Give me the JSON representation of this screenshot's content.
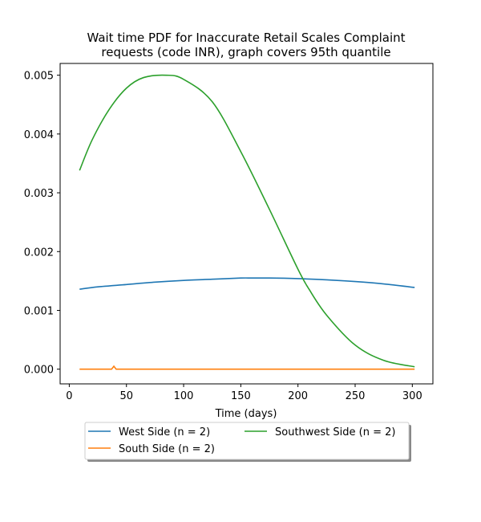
{
  "chart_data": {
    "type": "line",
    "title": "Wait time PDF for Inaccurate Retail Scales Complaint requests (code INR), graph covers 95th quantile",
    "title_lines": [
      "Wait time PDF for Inaccurate Retail Scales Complaint",
      "requests (code INR), graph covers 95th quantile"
    ],
    "xlabel": "Time (days)",
    "ylabel": "",
    "xlim": [
      -8,
      318
    ],
    "ylim": [
      -0.00025,
      0.0052
    ],
    "xticks": [
      0,
      50,
      100,
      150,
      200,
      250,
      300
    ],
    "yticks": [
      0.0,
      0.001,
      0.002,
      0.003,
      0.004,
      0.005
    ],
    "ytick_labels": [
      "0.000",
      "0.001",
      "0.002",
      "0.003",
      "0.004",
      "0.005"
    ],
    "grid": false,
    "legend_placement": "below-plot",
    "series": [
      {
        "name": "West Side (n = 2)",
        "color": "#1f77b4",
        "x": [
          9,
          25,
          50,
          75,
          100,
          125,
          150,
          160,
          175,
          200,
          225,
          250,
          275,
          302
        ],
        "y": [
          0.00136,
          0.0014,
          0.00144,
          0.00148,
          0.00151,
          0.00153,
          0.00155,
          0.00155,
          0.00155,
          0.00154,
          0.00152,
          0.00149,
          0.00145,
          0.00139
        ]
      },
      {
        "name": "South Side (n = 2)",
        "color": "#ff7f0e",
        "x": [
          9,
          35,
          37,
          39,
          41,
          43,
          60,
          100,
          150,
          200,
          250,
          302
        ],
        "y": [
          0.0,
          0.0,
          0.0,
          5e-05,
          0.0,
          0.0,
          0.0,
          0.0,
          0.0,
          0.0,
          0.0,
          0.0
        ]
      },
      {
        "name": "Southwest Side (n = 2)",
        "color": "#2ca02c",
        "x": [
          9,
          20,
          35,
          50,
          65,
          85,
          100,
          125,
          150,
          175,
          200,
          210,
          225,
          250,
          275,
          302
        ],
        "y": [
          0.00338,
          0.0039,
          0.00442,
          0.00478,
          0.00496,
          0.005,
          0.00493,
          0.00455,
          0.0037,
          0.00272,
          0.0017,
          0.00135,
          0.00092,
          0.00041,
          0.00015,
          4e-05
        ]
      }
    ]
  }
}
